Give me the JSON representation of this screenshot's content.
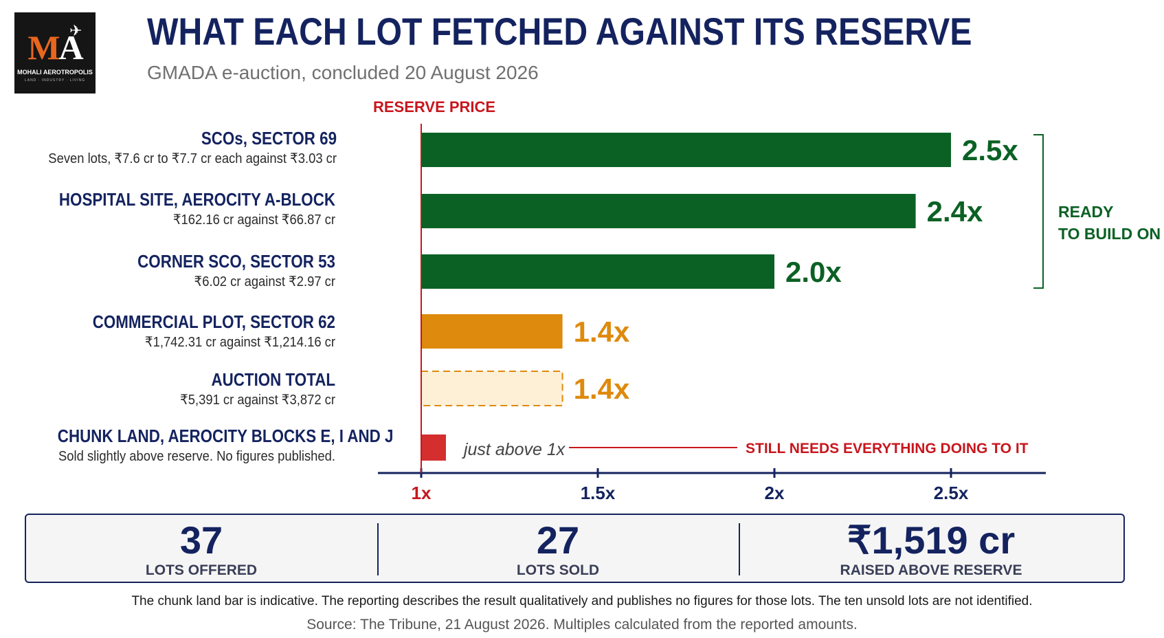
{
  "logo": {
    "mark_m": "M",
    "mark_a": "A",
    "name": "MOHALI AEROTROPOLIS",
    "tagline": "LAND · INDUSTRY · LIVING"
  },
  "title": "WHAT EACH LOT FETCHED AGAINST ITS RESERVE",
  "subtitle": "GMADA e-auction, concluded 20 August 2026",
  "colors": {
    "ready": "#0b6124",
    "mid": "#de8a0d",
    "total_fill": "#fdf0d6",
    "low": "#d42e2e",
    "navy": "#14235f",
    "red_text": "#c8161d"
  },
  "chart_data": {
    "type": "bar",
    "orientation": "horizontal",
    "reference_line": {
      "value": 1,
      "label": "RESERVE PRICE"
    },
    "x_ticks": [
      {
        "value": 1,
        "label": "1x"
      },
      {
        "value": 1.5,
        "label": "1.5x"
      },
      {
        "value": 2,
        "label": "2x"
      },
      {
        "value": 2.5,
        "label": "2.5x"
      }
    ],
    "xlim": [
      1,
      2.75
    ],
    "bars": [
      {
        "title": "SCOs, SECTOR 69",
        "subtitle": "Seven lots, ₹7.6 cr to ₹7.7 cr each against ₹3.03 cr",
        "value": 2.5,
        "label": "2.5x",
        "style": "ready"
      },
      {
        "title": "HOSPITAL SITE, AEROCITY A-BLOCK",
        "subtitle": "₹162.16 cr against ₹66.87 cr",
        "value": 2.4,
        "label": "2.4x",
        "style": "ready"
      },
      {
        "title": "CORNER SCO, SECTOR 53",
        "subtitle": "₹6.02 cr against ₹2.97 cr",
        "value": 2.0,
        "label": "2.0x",
        "style": "ready"
      },
      {
        "title": "COMMERCIAL PLOT, SECTOR 62",
        "subtitle": "₹1,742.31 cr against ₹1,214.16 cr",
        "value": 1.4,
        "label": "1.4x",
        "style": "mid"
      },
      {
        "title": "AUCTION TOTAL",
        "subtitle": "₹5,391 cr against ₹3,872 cr",
        "value": 1.4,
        "label": "1.4x",
        "style": "total"
      },
      {
        "title": "CHUNK LAND, AEROCITY BLOCKS E, I AND J",
        "subtitle": "Sold slightly above reserve. No figures published.",
        "value": 1.07,
        "label": "just above 1x",
        "style": "low"
      }
    ],
    "bracket": {
      "label_line1": "READY",
      "label_line2": "TO BUILD ON"
    },
    "callout": "STILL NEEDS EVERYTHING DOING TO IT"
  },
  "stats": [
    {
      "value": "37",
      "label": "LOTS OFFERED"
    },
    {
      "value": "27",
      "label": "LOTS SOLD"
    },
    {
      "value": "₹1,519 cr",
      "label": "RAISED ABOVE RESERVE"
    }
  ],
  "footnote": "The chunk land bar is indicative. The reporting describes the result qualitatively and publishes no figures for those lots. The ten unsold lots are not identified.",
  "source": "Source: The Tribune, 21 August 2026. Multiples calculated from the reported amounts."
}
